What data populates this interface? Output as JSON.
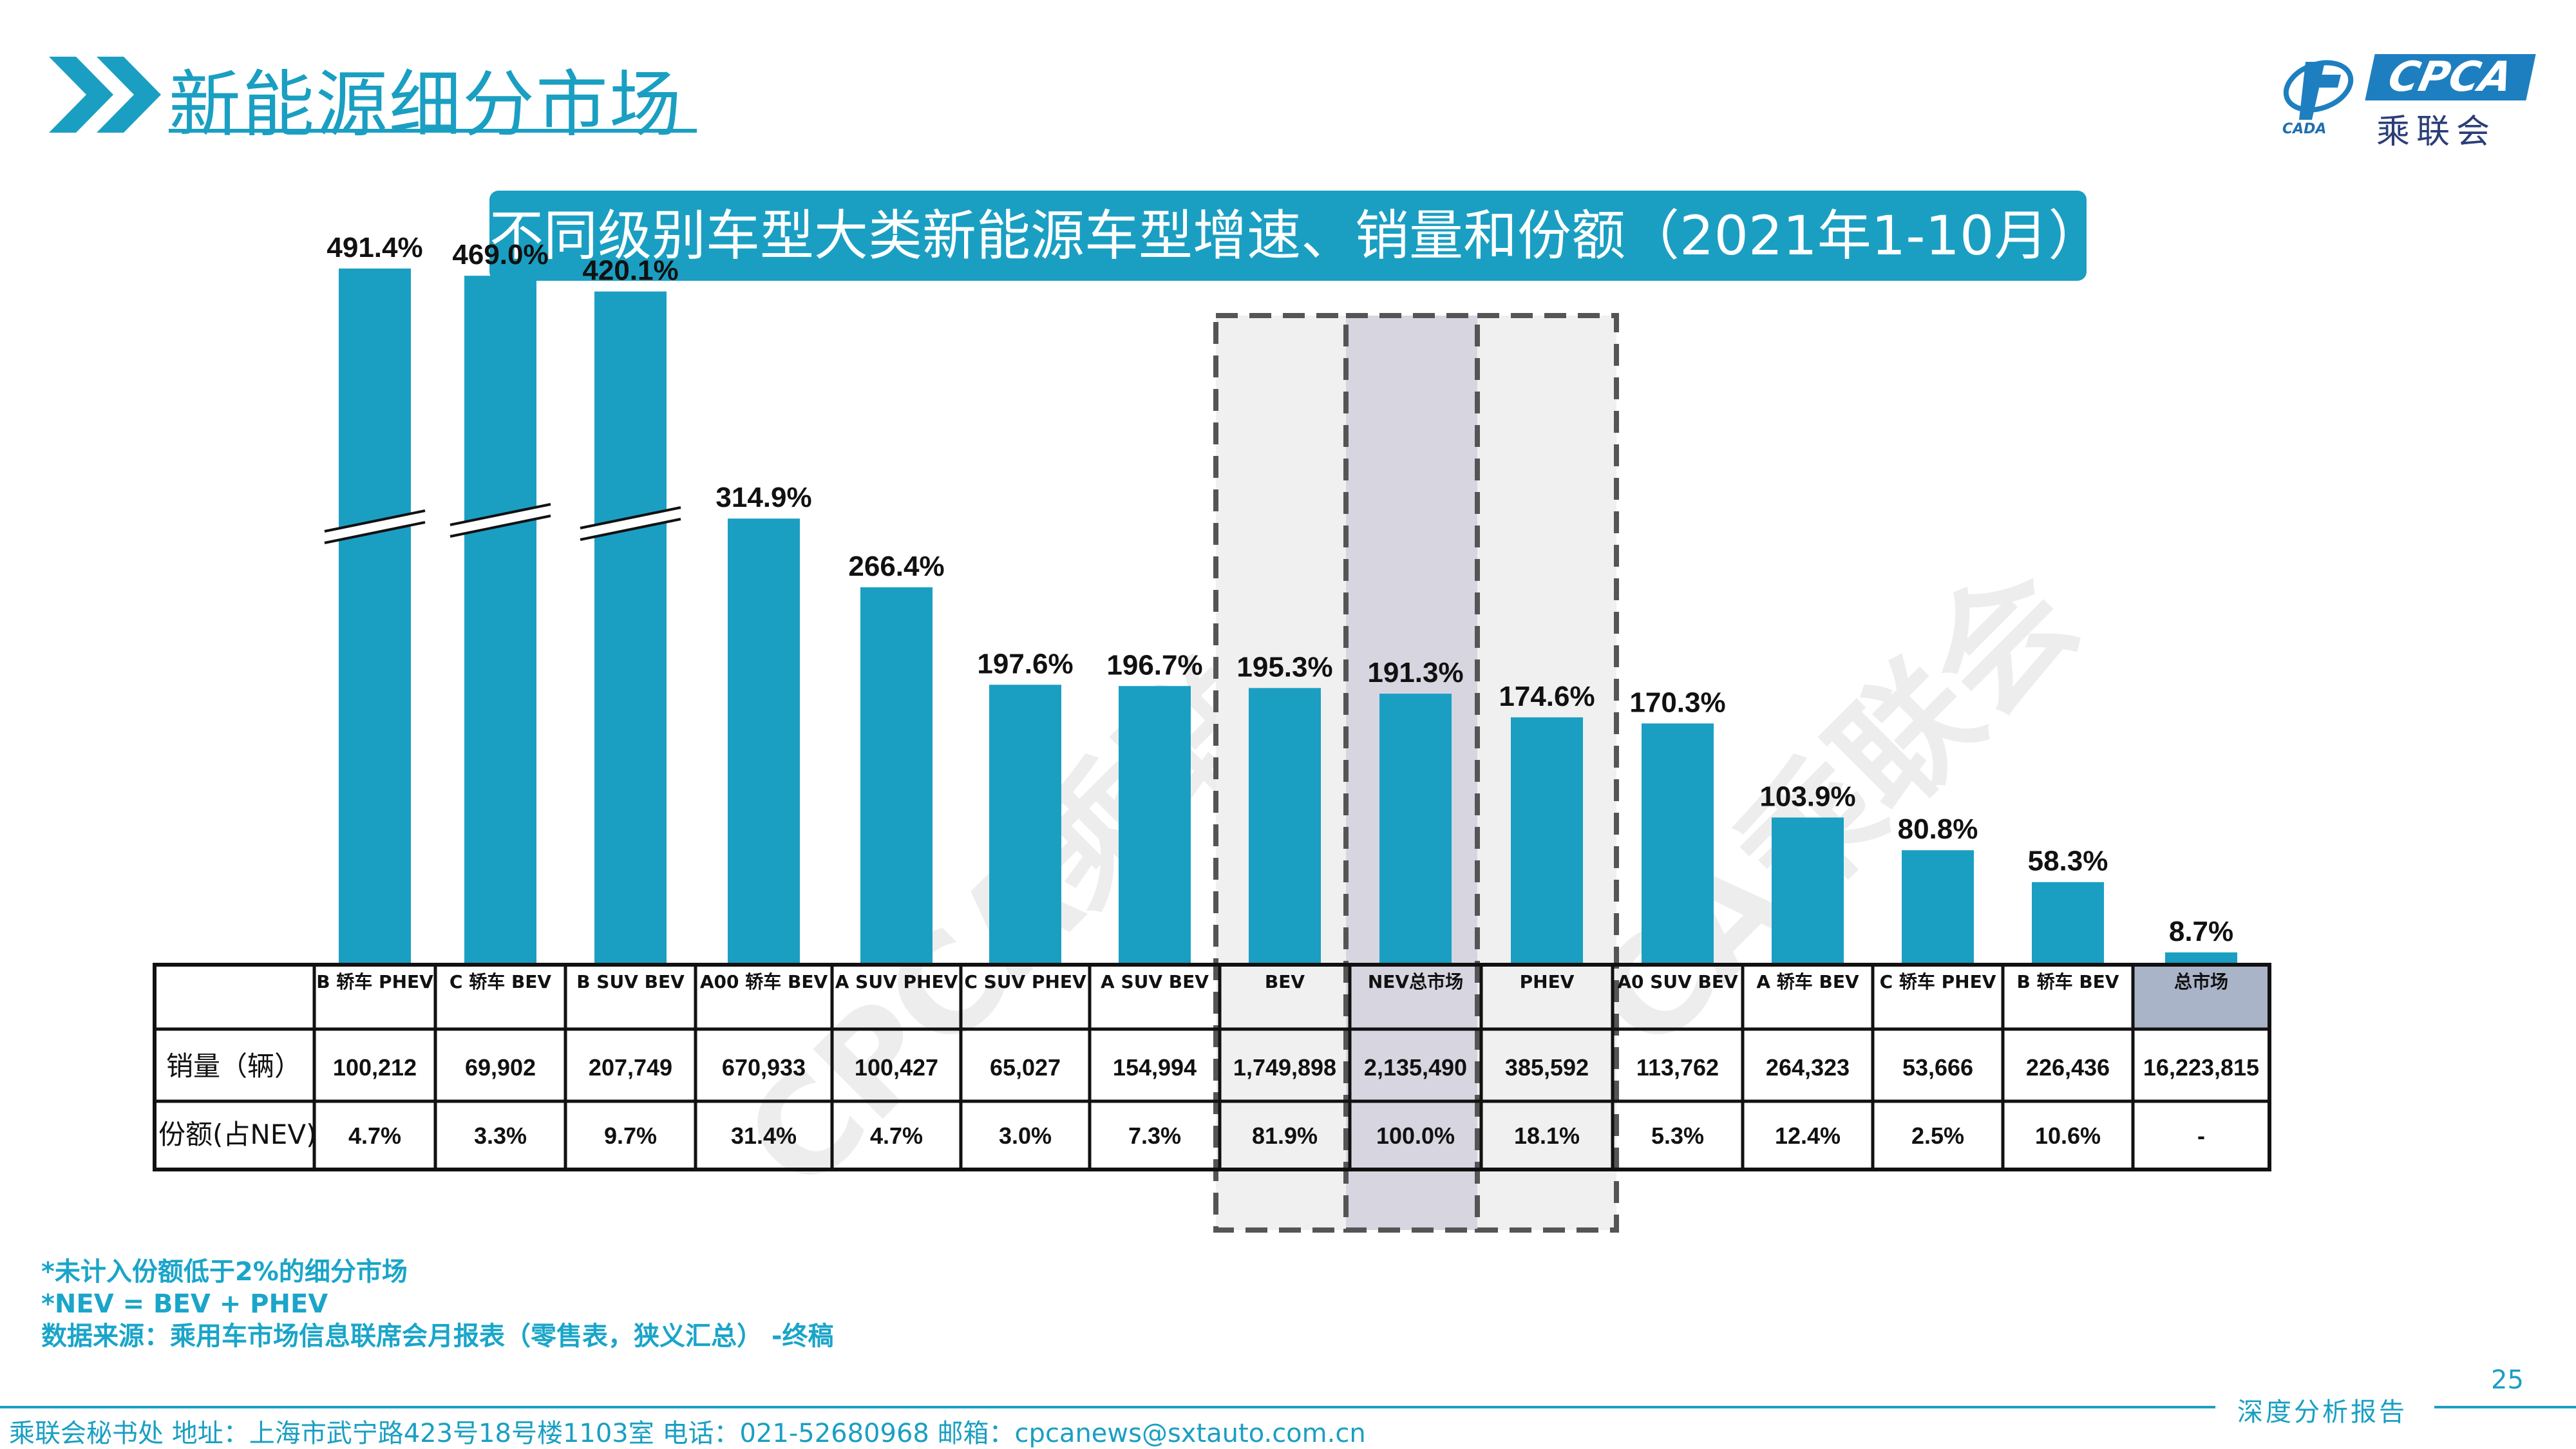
{
  "header": {
    "title": "新能源细分市场",
    "subtitle": "不同级别车型大类新能源车型增速、销量和份额（2021年1-10月）"
  },
  "logo": {
    "brand_text": "CPCA",
    "brand_cn": "乘联会",
    "mark_text": "CADA"
  },
  "watermarks": [
    "CPCA乘联会",
    "CPCA乘联会"
  ],
  "chart_data": {
    "type": "bar",
    "title": "不同级别车型大类新能源车型增速、销量和份额（2021年1-10月）",
    "categories": [
      "B 轿车 PHEV",
      "C 轿车 BEV",
      "B SUV BEV",
      "A00 轿车 BEV",
      "A SUV PHEV",
      "C SUV PHEV",
      "A SUV BEV",
      "BEV",
      "NEV总市场",
      "PHEV",
      "A0 SUV BEV",
      "A 轿车 BEV",
      "C 轿车 PHEV",
      "B 轿车 BEV",
      "总市场"
    ],
    "values": [
      491.4,
      469.0,
      420.1,
      314.9,
      266.4,
      197.6,
      196.7,
      195.3,
      191.3,
      174.6,
      170.3,
      103.9,
      80.8,
      58.3,
      8.7
    ],
    "value_labels": [
      "491.4%",
      "469.0%",
      "420.1%",
      "314.9%",
      "266.4%",
      "197.6%",
      "196.7%",
      "195.3%",
      "191.3%",
      "174.6%",
      "170.3%",
      "103.9%",
      "80.8%",
      "58.3%",
      "8.7%"
    ],
    "axis_break_bars": [
      0,
      1,
      2
    ],
    "highlighted": [
      "BEV",
      "NEV总市场",
      "PHEV"
    ],
    "bar_color": "#1a9fc2",
    "table": {
      "row_labels": [
        "销量（辆）",
        "份额(占NEV)"
      ],
      "sales": [
        "100,212",
        "69,902",
        "207,749",
        "670,933",
        "100,427",
        "65,027",
        "154,994",
        "1,749,898",
        "2,135,490",
        "385,592",
        "113,762",
        "264,323",
        "53,666",
        "226,436",
        "16,223,815"
      ],
      "share": [
        "4.7%",
        "3.3%",
        "9.7%",
        "31.4%",
        "4.7%",
        "3.0%",
        "7.3%",
        "81.9%",
        "100.0%",
        "18.1%",
        "5.3%",
        "12.4%",
        "2.5%",
        "10.6%",
        "-"
      ]
    }
  },
  "notes": [
    "*未计入份额低于2%的细分市场",
    "*NEV = BEV + PHEV",
    "数据来源：乘用车市场信息联席会月报表（零售表，狭义汇总） -终稿"
  ],
  "footer": {
    "text": "乘联会秘书处   地址：上海市武宁路423号18号楼1103室  电话：021-52680968   邮箱：cpcanews@sxtauto.com.cn",
    "report_tag": "深度分析报告",
    "page_number": "25"
  }
}
